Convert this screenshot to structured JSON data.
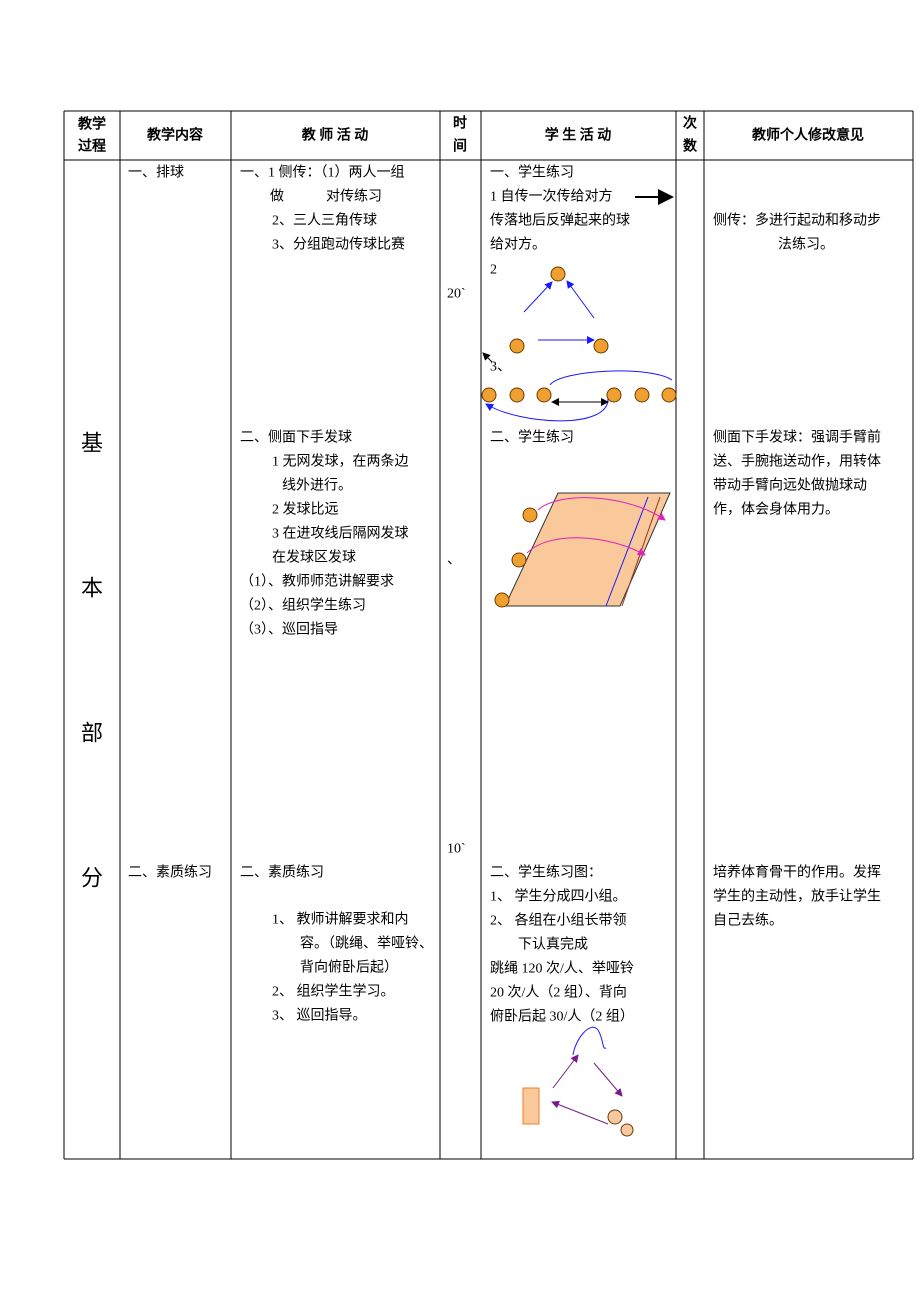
{
  "header": [
    [
      "教学",
      "过程"
    ],
    [
      "教学内容"
    ],
    [
      "教 师 活 动"
    ],
    [
      "时",
      "间"
    ],
    [
      "学 生 活 动"
    ],
    [
      "次",
      "数"
    ],
    [
      "教师个人修改意见"
    ]
  ],
  "section": [
    "基",
    "本",
    "部",
    "分"
  ],
  "content": [
    "一、排球",
    "二、素质练习"
  ],
  "teacher": [
    [
      "一、1 侧传：（1）两人一组",
      "做　　　对传练习",
      "2、三人三角传球",
      "3、分组跑动传球比赛"
    ],
    [
      "二、侧面下手发球",
      "1 无网发球，在两条边",
      "线外进行。",
      "2 发球比远",
      "3 在进攻线后隔网发球",
      "在发球区发球",
      "（1）、教师师范讲解要求",
      "（2）、组织学生练习",
      "（3）、巡回指导"
    ],
    [
      "二、素质练习",
      "1、 教师讲解要求和内",
      "容。（跳绳、举哑铃、",
      "背向俯卧后起）",
      "2、 组织学生学习。",
      "3、 巡回指导。"
    ]
  ],
  "time": [
    "20`",
    "、",
    "10`"
  ],
  "student": [
    [
      "一、学生练习",
      "1 自传一次传给对方",
      "传落地后反弹起来的球",
      "给对方。",
      "2",
      "3、"
    ],
    [
      "二、学生练习"
    ],
    [
      "二、学生练习图：",
      "1、 学生分成四小组。",
      "2、 各组在小组长带领",
      "下认真完成",
      "跳绳 120 次/人、举哑铃",
      "20 次/人（2 组）、背向",
      "俯卧后起 30/人（2 组）"
    ]
  ],
  "comments": [
    [
      "侧传：多进行起动和移动步",
      "法练习。"
    ],
    [
      "侧面下手发球：强调手臂前",
      "送、手腕拖送动作，用转体",
      "带动手臂向远处做抛球动",
      "作，体会身体用力。"
    ],
    [
      "培养体育骨干的作用。发挥",
      "学生的主动性，放手让学生",
      "自己去练。"
    ]
  ]
}
